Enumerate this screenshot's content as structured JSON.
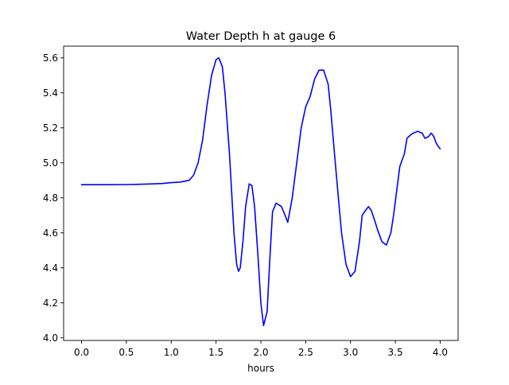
{
  "chart_data": {
    "type": "line",
    "title": "Water Depth h at gauge 6",
    "xlabel": "hours",
    "ylabel": "",
    "xlim": [
      -0.2,
      4.2
    ],
    "ylim": [
      3.985,
      5.667
    ],
    "grid": false,
    "x_ticks": [
      "0.0",
      "0.5",
      "1.0",
      "1.5",
      "2.0",
      "2.5",
      "3.0",
      "3.5",
      "4.0"
    ],
    "y_ticks": [
      "4.0",
      "4.2",
      "4.4",
      "4.6",
      "4.8",
      "5.0",
      "5.2",
      "5.4",
      "5.6"
    ],
    "series": [
      {
        "color": "#0000ff",
        "x": [
          0.0,
          0.25,
          0.5,
          0.6,
          0.75,
          0.9,
          1.0,
          1.1,
          1.2,
          1.25,
          1.3,
          1.35,
          1.4,
          1.45,
          1.5,
          1.53,
          1.57,
          1.6,
          1.65,
          1.7,
          1.73,
          1.75,
          1.77,
          1.8,
          1.83,
          1.87,
          1.9,
          1.93,
          1.97,
          2.0,
          2.03,
          2.07,
          2.1,
          2.13,
          2.17,
          2.2,
          2.23,
          2.27,
          2.3,
          2.35,
          2.4,
          2.45,
          2.5,
          2.55,
          2.6,
          2.65,
          2.7,
          2.75,
          2.78,
          2.83,
          2.9,
          2.95,
          3.0,
          3.05,
          3.1,
          3.13,
          3.17,
          3.2,
          3.23,
          3.27,
          3.3,
          3.35,
          3.4,
          3.45,
          3.48,
          3.5,
          3.55,
          3.6,
          3.63,
          3.67,
          3.7,
          3.75,
          3.8,
          3.83,
          3.87,
          3.9,
          3.93,
          3.95,
          3.97,
          4.0
        ],
        "y": [
          4.875,
          4.875,
          4.876,
          4.877,
          4.879,
          4.882,
          4.887,
          4.89,
          4.9,
          4.93,
          5.0,
          5.13,
          5.33,
          5.5,
          5.59,
          5.6,
          5.55,
          5.4,
          5.05,
          4.6,
          4.42,
          4.38,
          4.4,
          4.55,
          4.75,
          4.88,
          4.87,
          4.75,
          4.45,
          4.2,
          4.07,
          4.15,
          4.45,
          4.72,
          4.77,
          4.76,
          4.75,
          4.7,
          4.66,
          4.8,
          5.0,
          5.2,
          5.32,
          5.38,
          5.48,
          5.53,
          5.53,
          5.45,
          5.3,
          5.0,
          4.6,
          4.42,
          4.35,
          4.38,
          4.55,
          4.7,
          4.73,
          4.75,
          4.73,
          4.67,
          4.62,
          4.55,
          4.53,
          4.6,
          4.7,
          4.78,
          4.98,
          5.05,
          5.14,
          5.16,
          5.17,
          5.18,
          5.17,
          5.14,
          5.15,
          5.17,
          5.15,
          5.12,
          5.1,
          5.08
        ]
      }
    ]
  }
}
